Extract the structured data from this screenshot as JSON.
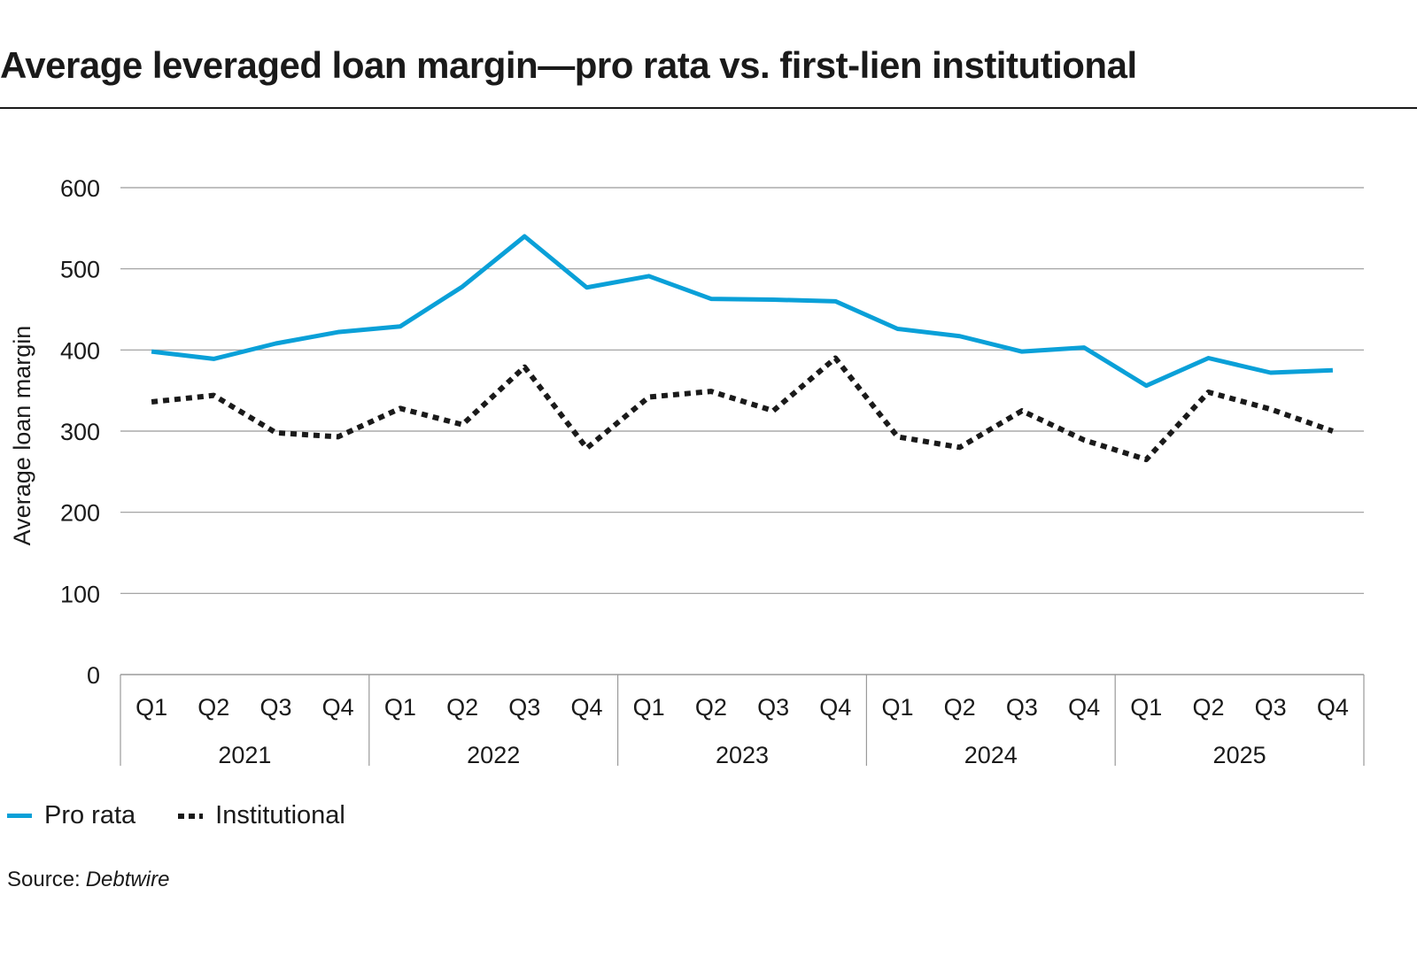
{
  "title": "Average leveraged loan margin—pro rata vs. first-lien institutional",
  "source_label": "Source:",
  "source_name": "Debtwire",
  "chart_data": {
    "type": "line",
    "title": "Average leveraged loan margin—pro rata vs. first-lien institutional",
    "ylabel": "Average loan margin",
    "xlabel": "",
    "ylim": [
      0,
      600
    ],
    "yticks": [
      0,
      100,
      200,
      300,
      400,
      500,
      600
    ],
    "grid": true,
    "legend_position": "bottom-left",
    "quarters": [
      "Q1",
      "Q2",
      "Q3",
      "Q4"
    ],
    "years": [
      "2021",
      "2022",
      "2023",
      "2024",
      "2025"
    ],
    "categories": [
      "2021 Q1",
      "2021 Q2",
      "2021 Q3",
      "2021 Q4",
      "2022 Q1",
      "2022 Q2",
      "2022 Q3",
      "2022 Q4",
      "2023 Q1",
      "2023 Q2",
      "2023 Q3",
      "2023 Q4",
      "2024 Q1",
      "2024 Q2",
      "2024 Q3",
      "2024 Q4",
      "2025 Q1",
      "2025 Q2",
      "2025 Q3",
      "2025 Q4"
    ],
    "series": [
      {
        "name": "Pro rata",
        "color": "#0aa0d8",
        "style": "solid",
        "values": [
          398,
          389,
          408,
          422,
          429,
          478,
          540,
          477,
          491,
          463,
          462,
          460,
          426,
          417,
          398,
          403,
          356,
          390,
          372,
          375
        ]
      },
      {
        "name": "Institutional",
        "color": "#1a1a1a",
        "style": "dotted",
        "values": [
          336,
          344,
          298,
          293,
          328,
          308,
          379,
          279,
          342,
          349,
          325,
          390,
          293,
          280,
          325,
          289,
          265,
          348,
          327,
          300
        ]
      }
    ]
  }
}
